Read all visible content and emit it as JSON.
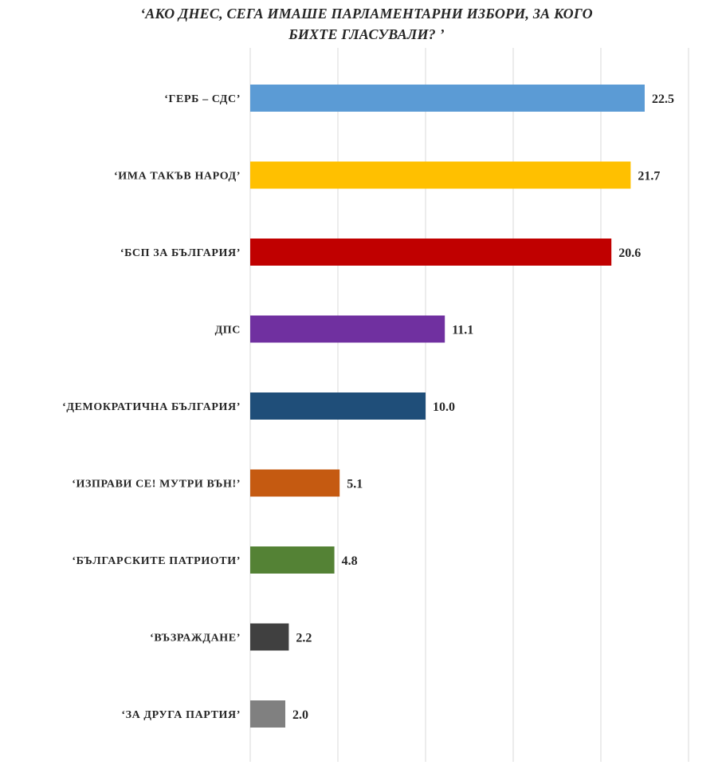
{
  "title_lines": [
    "‘АКО ДНЕС, СЕГА ИМАШЕ ПАРЛАМЕНТАРНИ ИЗБОРИ, ЗА КОГО",
    "БИХТЕ ГЛАСУВАЛИ? ’"
  ],
  "chart_data": {
    "type": "bar",
    "orientation": "horizontal",
    "title": "‘АКО ДНЕС, СЕГА ИМАШЕ ПАРЛАМЕНТАРНИ ИЗБОРИ, ЗА КОГО БИХТЕ ГЛАСУВАЛИ? ’",
    "xlabel": "",
    "ylabel": "",
    "xlim": [
      0,
      25
    ],
    "grid": true,
    "legend": "none",
    "categories": [
      "‘ГЕРБ – СДС’",
      "‘ИМА ТАКЪВ НАРОД’",
      "‘БСП ЗА БЪЛГАРИЯ’",
      "ДПС",
      "‘ДЕМОКРАТИЧНА БЪЛГАРИЯ’",
      "‘ИЗПРАВИ СЕ! МУТРИ ВЪН!’",
      "‘БЪЛГАРСКИТЕ ПАТРИОТИ’",
      "‘ВЪЗРАЖДАНЕ’",
      "‘ЗА ДРУГА ПАРТИЯ’"
    ],
    "values": [
      22.5,
      21.7,
      20.6,
      11.1,
      10.0,
      5.1,
      4.8,
      2.2,
      2.0
    ],
    "value_labels": [
      "22.5",
      "21.7",
      "20.6",
      "11.1",
      "10.0",
      "5.1",
      "4.8",
      "2.2",
      "2.0"
    ],
    "colors": [
      "#5b9bd5",
      "#ffc000",
      "#c00000",
      "#7030a0",
      "#1f4e79",
      "#c55a11",
      "#548235",
      "#404040",
      "#808080"
    ]
  }
}
